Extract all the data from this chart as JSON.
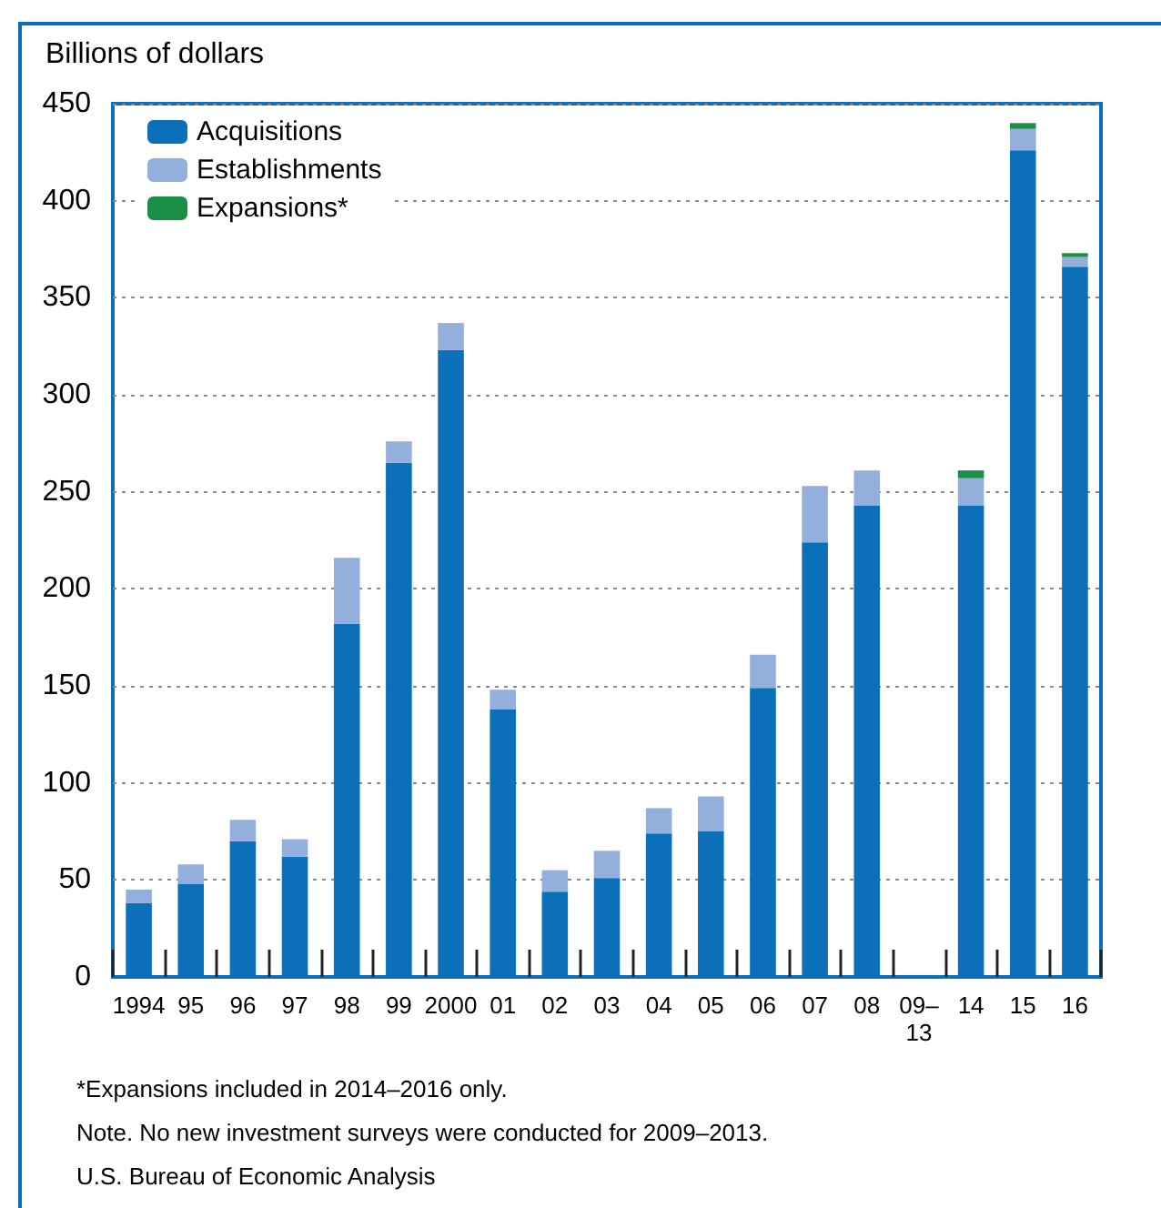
{
  "chart_data": {
    "type": "bar",
    "stacked": true,
    "ylabel": "Billions of dollars",
    "categories": [
      "1994",
      "95",
      "96",
      "97",
      "98",
      "99",
      "2000",
      "01",
      "02",
      "03",
      "04",
      "05",
      "06",
      "07",
      "08",
      "09–\n13",
      "14",
      "15",
      "16"
    ],
    "series": [
      {
        "name": "Acquisitions",
        "color": "#0b6fba",
        "values": [
          38,
          48,
          70,
          62,
          182,
          265,
          323,
          138,
          44,
          51,
          74,
          75,
          149,
          224,
          243,
          null,
          243,
          426,
          366
        ]
      },
      {
        "name": "Establishments",
        "color": "#93afdc",
        "values": [
          7,
          10,
          11,
          9,
          34,
          11,
          14,
          10,
          11,
          14,
          13,
          18,
          17,
          29,
          18,
          null,
          14,
          11,
          5
        ]
      },
      {
        "name": "Expansions*",
        "color": "#1a8f45",
        "values": [
          null,
          null,
          null,
          null,
          null,
          null,
          null,
          null,
          null,
          null,
          null,
          null,
          null,
          null,
          null,
          null,
          4,
          3,
          2
        ]
      }
    ],
    "ylim": [
      0,
      450
    ],
    "yticks": [
      0,
      50,
      100,
      150,
      200,
      250,
      300,
      350,
      400,
      450
    ],
    "grid": "y",
    "legend": "top left",
    "annotations": [
      "*Expansions included in 2014–2016 only.",
      "Note. No new investment surveys were conducted for 2009–2013.",
      "U.S. Bureau of Economic Analysis"
    ]
  }
}
